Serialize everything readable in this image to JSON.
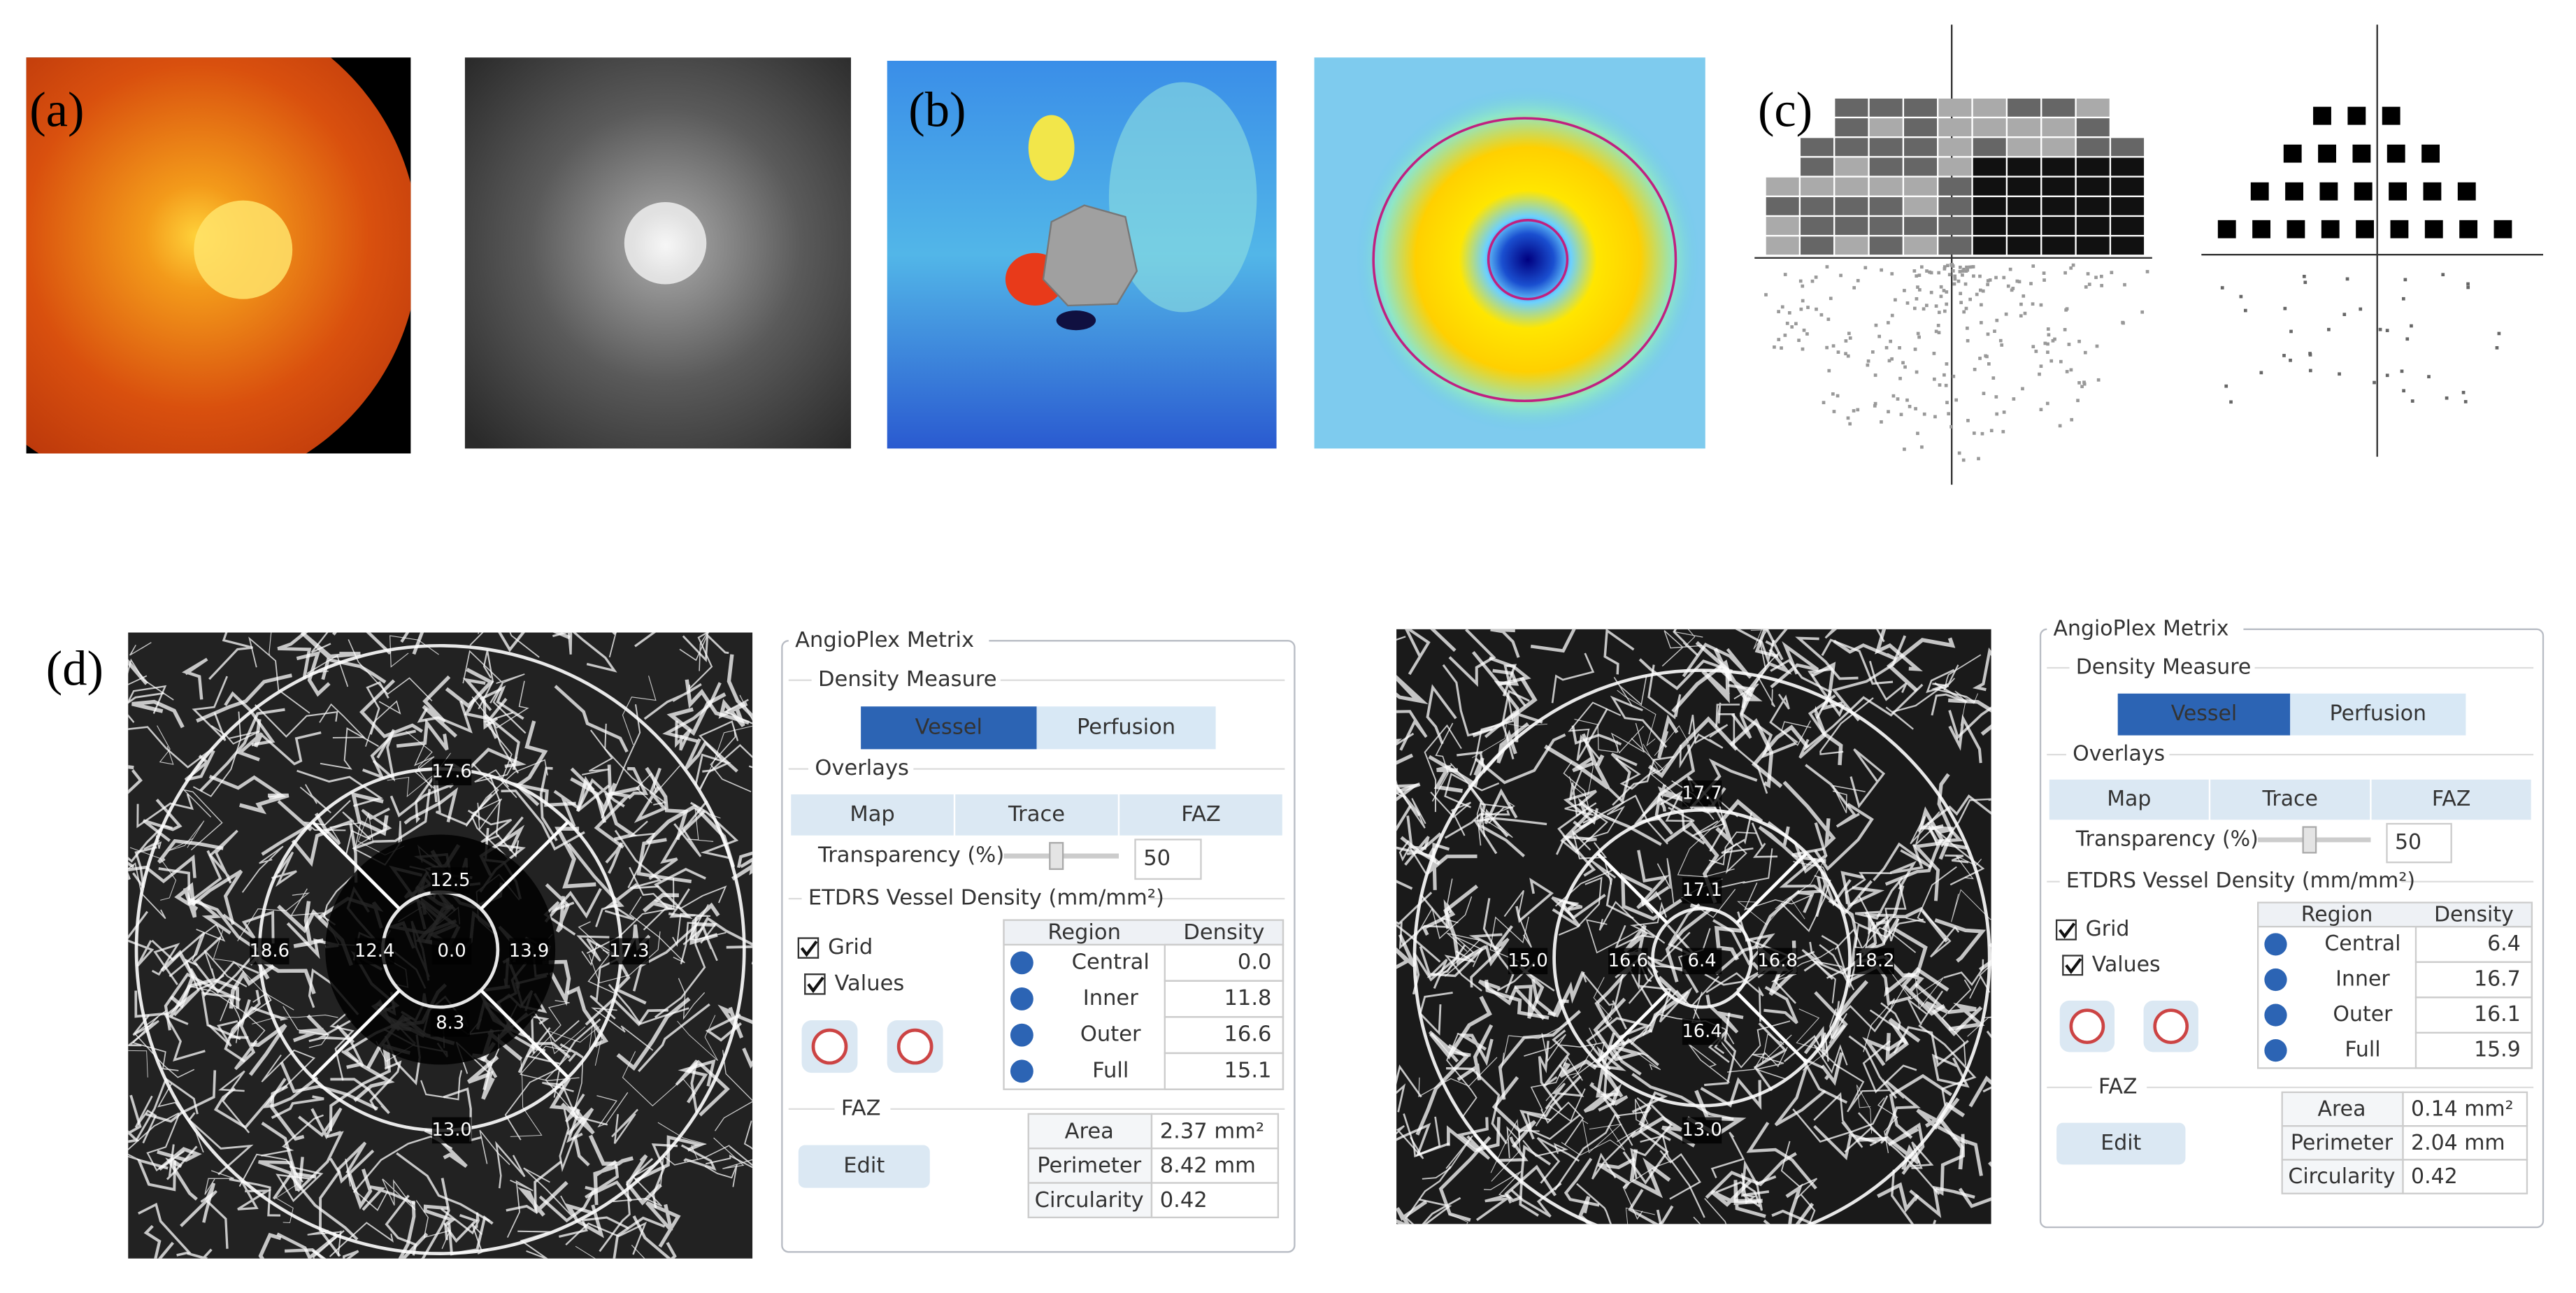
{
  "panel_labels": [
    "(a)",
    "(b)",
    "(c)",
    "(d)"
  ],
  "octa": [
    {
      "labels": [
        "17.6",
        "12.5",
        "18.6",
        "12.4",
        "0.0",
        "13.9",
        "17.3",
        "8.3",
        "13.0"
      ]
    },
    {
      "labels": [
        "17.7",
        "17.1",
        "15.0",
        "16.6",
        "6.4",
        "16.8",
        "18.2",
        "16.4",
        "13.0"
      ]
    }
  ],
  "metrix": [
    {
      "title": "AngioPlex Metrix",
      "density_measure": "Density Measure",
      "density_buttons": [
        "Vessel",
        "Perfusion"
      ],
      "overlays": "Overlays",
      "overlay_buttons": [
        "Map",
        "Trace",
        "FAZ"
      ],
      "transparency": "Transparency (%)",
      "transparency_value": "50",
      "etdrs": "ETDRS Vessel Density (mm/mm²)",
      "checkboxes": [
        "Grid",
        "Values"
      ],
      "table_header": [
        "Region",
        "Density"
      ],
      "rows": [
        [
          "Central",
          "0.0"
        ],
        [
          "Inner",
          "11.8"
        ],
        [
          "Outer",
          "16.6"
        ],
        [
          "Full",
          "15.1"
        ]
      ],
      "faz": "FAZ",
      "edit": "Edit",
      "faz_rows": [
        [
          "Area",
          "2.37 mm²"
        ],
        [
          "Perimeter",
          "8.42 mm"
        ],
        [
          "Circularity",
          "0.42"
        ]
      ]
    },
    {
      "title": "AngioPlex Metrix",
      "density_measure": "Density Measure",
      "density_buttons": [
        "Vessel",
        "Perfusion"
      ],
      "overlays": "Overlays",
      "overlay_buttons": [
        "Map",
        "Trace",
        "FAZ"
      ],
      "transparency": "Transparency (%)",
      "transparency_value": "50",
      "etdrs": "ETDRS Vessel Density (mm/mm²)",
      "checkboxes": [
        "Grid",
        "Values"
      ],
      "table_header": [
        "Region",
        "Density"
      ],
      "rows": [
        [
          "Central",
          "6.4"
        ],
        [
          "Inner",
          "16.7"
        ],
        [
          "Outer",
          "16.1"
        ],
        [
          "Full",
          "15.9"
        ]
      ],
      "faz": "FAZ",
      "edit": "Edit",
      "faz_rows": [
        [
          "Area",
          "0.14 mm²"
        ],
        [
          "Perimeter",
          "2.04 mm"
        ],
        [
          "Circularity",
          "0.42"
        ]
      ]
    }
  ]
}
